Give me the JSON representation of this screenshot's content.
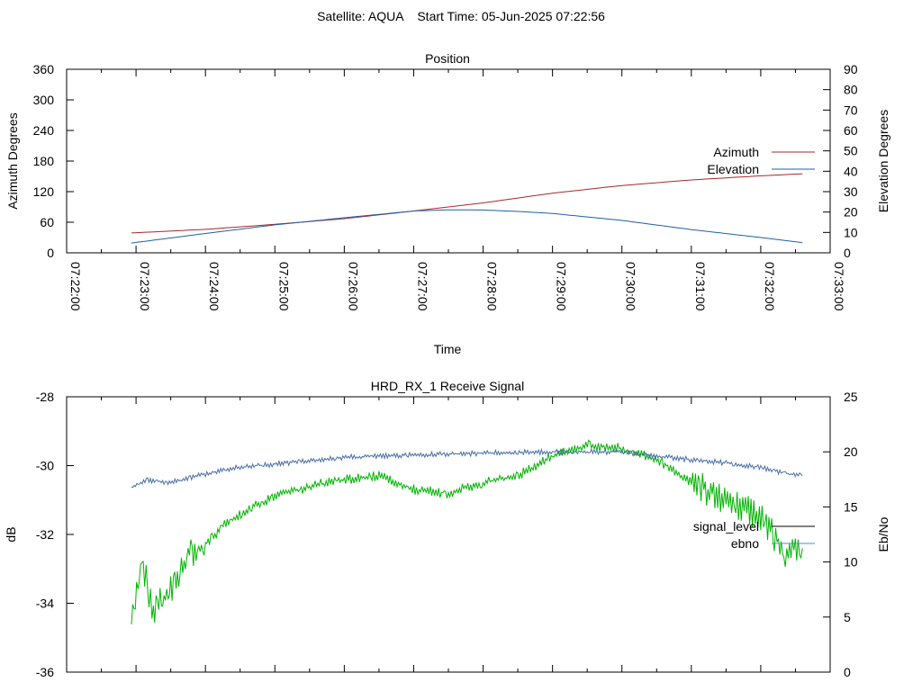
{
  "page_title": "Satellite: AQUA    Start Time: 05-Jun-2025 07:22:56",
  "colors": {
    "azimuth": "#a52a2a",
    "elevation": "#1f5fa8",
    "signal_level": "#00b400",
    "ebno": "#4a6fa5",
    "legend_signal": "#000000",
    "legend_ebno": "#4a90c8",
    "axis": "#000000"
  },
  "chart_data": [
    {
      "type": "line",
      "title": "Position",
      "xlabel": "Time",
      "ylabel": "Azimuth Degrees",
      "y2label": "Elevation Degrees",
      "x_ticks": [
        "07:22:00",
        "07:23:00",
        "07:24:00",
        "07:25:00",
        "07:26:00",
        "07:27:00",
        "07:28:00",
        "07:29:00",
        "07:30:00",
        "07:31:00",
        "07:32:00",
        "07:33:00"
      ],
      "xlim": [
        "07:22:00",
        "07:33:00"
      ],
      "ylim": [
        0,
        360
      ],
      "y_ticks": [
        0,
        60,
        120,
        180,
        240,
        300,
        360
      ],
      "y2lim": [
        0,
        90
      ],
      "y2_ticks": [
        0,
        10,
        20,
        30,
        40,
        50,
        60,
        70,
        80,
        90
      ],
      "grid": false,
      "legend_position": "right",
      "series": [
        {
          "name": "Azimuth",
          "axis": "left",
          "x": [
            "07:22:56",
            "07:24:00",
            "07:25:00",
            "07:26:00",
            "07:27:00",
            "07:28:00",
            "07:29:00",
            "07:30:00",
            "07:31:00",
            "07:32:00",
            "07:32:36"
          ],
          "values": [
            39,
            46,
            56,
            67,
            82,
            98,
            117,
            132,
            143,
            151,
            155
          ]
        },
        {
          "name": "Elevation",
          "axis": "right",
          "x": [
            "07:22:56",
            "07:24:00",
            "07:25:00",
            "07:26:00",
            "07:27:00",
            "07:27:30",
            "07:28:00",
            "07:28:30",
            "07:29:00",
            "07:30:00",
            "07:31:00",
            "07:32:00",
            "07:32:36"
          ],
          "values": [
            4.8,
            9.5,
            13.7,
            17.2,
            20.5,
            21.1,
            21.0,
            20.3,
            19.3,
            15.9,
            11.4,
            7.5,
            5.0
          ]
        }
      ]
    },
    {
      "type": "line",
      "title": "HRD_RX_1 Receive Signal",
      "xlabel": "",
      "ylabel": "dB",
      "y2label": "Eb/No",
      "xlim": [
        "07:22:00",
        "07:33:00"
      ],
      "ylim": [
        -36,
        -28
      ],
      "y_ticks": [
        -36,
        -34,
        -32,
        -30,
        -28
      ],
      "y2lim": [
        0,
        25
      ],
      "y2_ticks": [
        0,
        5,
        10,
        15,
        20,
        25
      ],
      "grid": false,
      "legend_position": "right",
      "series": [
        {
          "name": "signal_level",
          "axis": "left",
          "x": [
            "07:22:56",
            "07:23:05",
            "07:23:15",
            "07:23:30",
            "07:23:45",
            "07:24:00",
            "07:24:20",
            "07:24:40",
            "07:25:00",
            "07:25:30",
            "07:26:00",
            "07:26:30",
            "07:27:00",
            "07:27:30",
            "07:28:00",
            "07:28:30",
            "07:29:00",
            "07:29:30",
            "07:30:00",
            "07:30:30",
            "07:31:00",
            "07:31:30",
            "07:32:00",
            "07:32:20",
            "07:32:36"
          ],
          "values": [
            -34.3,
            -32.8,
            -34.2,
            -33.6,
            -32.6,
            -32.3,
            -31.6,
            -31.2,
            -30.9,
            -30.6,
            -30.4,
            -30.3,
            -30.7,
            -30.8,
            -30.5,
            -30.3,
            -29.7,
            -29.4,
            -29.5,
            -29.8,
            -30.5,
            -31.0,
            -31.5,
            -32.5,
            -32.4
          ]
        },
        {
          "name": "ebno",
          "axis": "right",
          "x": [
            "07:22:56",
            "07:23:10",
            "07:23:30",
            "07:24:00",
            "07:24:30",
            "07:25:00",
            "07:25:30",
            "07:26:00",
            "07:27:00",
            "07:28:00",
            "07:29:00",
            "07:30:00",
            "07:30:30",
            "07:31:00",
            "07:31:30",
            "07:32:00",
            "07:32:20",
            "07:32:36"
          ],
          "values": [
            16.8,
            17.4,
            17.2,
            18.0,
            18.6,
            18.9,
            19.2,
            19.5,
            19.7,
            19.9,
            20.0,
            20.0,
            19.6,
            19.3,
            19.0,
            18.6,
            18.1,
            17.8
          ]
        }
      ]
    }
  ]
}
